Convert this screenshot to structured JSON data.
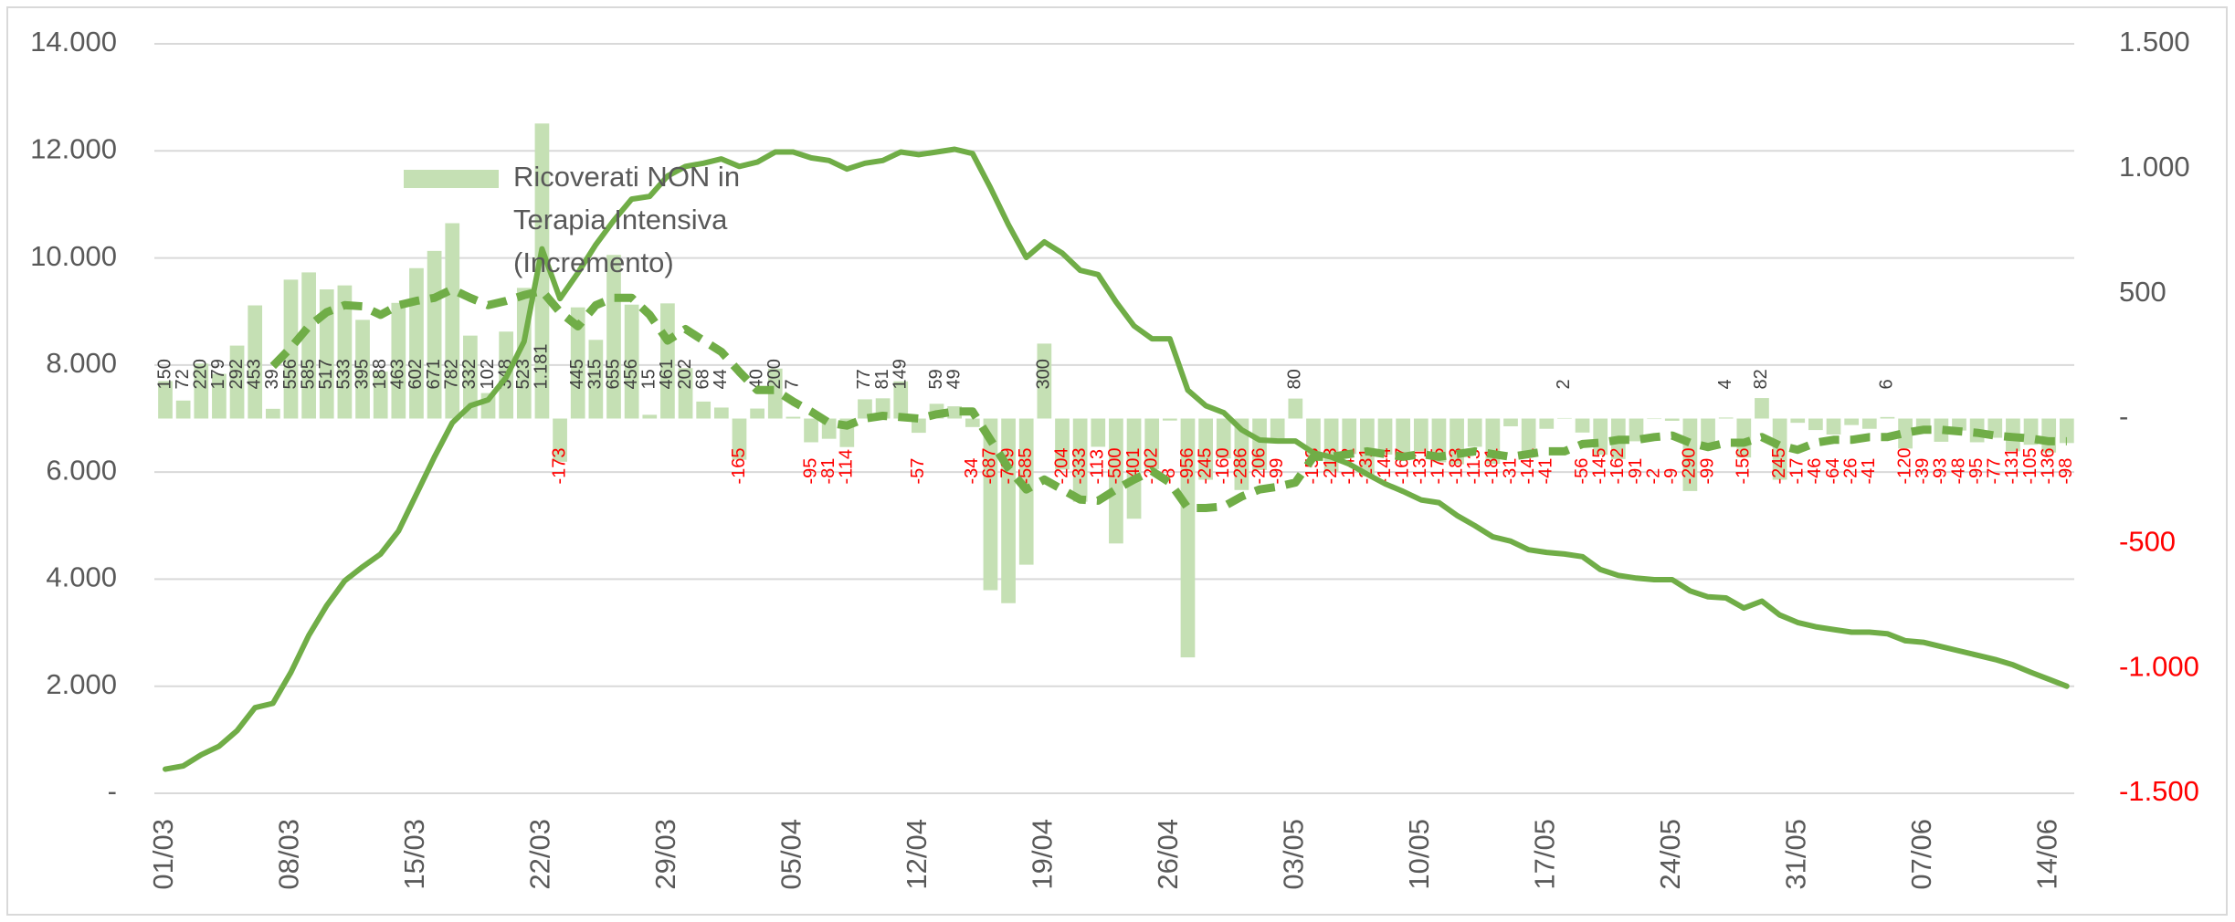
{
  "chart_data": {
    "type": "combo",
    "categories": [
      "01/03",
      null,
      null,
      null,
      null,
      null,
      null,
      "08/03",
      null,
      null,
      null,
      null,
      null,
      null,
      "15/03",
      null,
      null,
      null,
      null,
      null,
      null,
      "22/03",
      null,
      null,
      null,
      null,
      null,
      null,
      "29/03",
      null,
      null,
      null,
      null,
      null,
      null,
      "05/04",
      null,
      null,
      null,
      null,
      null,
      null,
      "12/04",
      null,
      null,
      null,
      null,
      null,
      null,
      "19/04",
      null,
      null,
      null,
      null,
      null,
      null,
      "26/04",
      null,
      null,
      null,
      null,
      null,
      null,
      "03/05",
      null,
      null,
      null,
      null,
      null,
      null,
      "10/05",
      null,
      null,
      null,
      null,
      null,
      null,
      "17/05",
      null,
      null,
      null,
      null,
      null,
      null,
      "24/05",
      null,
      null,
      null,
      null,
      null,
      null,
      "31/05",
      null,
      null,
      null,
      null,
      null,
      null,
      "07/06",
      null,
      null,
      null,
      null,
      null,
      null,
      "14/06",
      null
    ],
    "series": [
      {
        "name": "Ricoverati NON in Terapia Intensiva (Incremento)",
        "type": "bar",
        "axis": "y2",
        "color": "#c5e0b4",
        "values": [
          150,
          72,
          220,
          179,
          292,
          453,
          39,
          556,
          585,
          517,
          533,
          395,
          188,
          463,
          602,
          671,
          782,
          332,
          102,
          348,
          523,
          1181,
          -173,
          445,
          315,
          655,
          456,
          15,
          461,
          202,
          68,
          44,
          -165,
          40,
          200,
          7,
          -95,
          -81,
          -114,
          77,
          81,
          149,
          -57,
          59,
          49,
          -34,
          -687,
          -739,
          -585,
          300,
          -204,
          -333,
          -113,
          -500,
          -401,
          -202,
          -8,
          -956,
          -245,
          -160,
          -286,
          -206,
          -99,
          80,
          -153,
          -213,
          -142,
          -231,
          -144,
          -167,
          -131,
          -175,
          -183,
          -113,
          -181,
          -31,
          -141,
          -41,
          2,
          -56,
          -145,
          -162,
          -91,
          -2,
          -9,
          -290,
          -99,
          4,
          -156,
          82,
          -245,
          -17,
          -46,
          -64,
          -26,
          -41,
          6,
          -120,
          -39,
          -93,
          -48,
          -95,
          -77,
          -131,
          -105,
          -136,
          -98
        ],
        "value_labels": [
          "150",
          "72",
          "220",
          "179",
          "292",
          "453",
          "39",
          "556",
          "585",
          "517",
          "533",
          "395",
          "188",
          "463",
          "602",
          "671",
          "782",
          "332",
          "102",
          "348",
          "523",
          "1.181",
          "-173",
          "445",
          "315",
          "655",
          "456",
          "15",
          "461",
          "202",
          "68",
          "44",
          "-165",
          "40",
          "200",
          "7",
          "-95",
          "-81",
          "-114",
          "77",
          "81",
          "149",
          "-57",
          "59",
          "49",
          "-34",
          "-687",
          "-739",
          "-585",
          "300",
          "-204",
          "-333",
          "-113",
          "-500",
          "-401",
          "-202",
          "-8",
          "-956",
          "-245",
          "-160",
          "-286",
          "-206",
          "-99",
          "80",
          "-153",
          "-213",
          "-142",
          "-231",
          "-144",
          "-167",
          "-131",
          "-175",
          "-183",
          "-113",
          "-181",
          "-31",
          "-141",
          "-41",
          "2",
          "-56",
          "-145",
          "-162",
          "-91",
          "-2",
          "-9",
          "-290",
          "-99",
          "4",
          "-156",
          "82",
          "-245",
          "-17",
          "-46",
          "-64",
          "-26",
          "-41",
          "6",
          "-120",
          "-39",
          "-93",
          "-48",
          "-95",
          "-77",
          "-131",
          "-105",
          "-136",
          "-98"
        ]
      },
      {
        "type": "line",
        "color": "#70ad47",
        "dashed": false,
        "values": [
          450,
          510,
          720,
          880,
          1170,
          1600,
          1680,
          2260,
          2950,
          3510,
          3970,
          4230,
          4470,
          4900,
          5590,
          6280,
          6920,
          7240,
          7350,
          7770,
          8440,
          10170,
          9240,
          9720,
          10250,
          10700,
          11100,
          11150,
          11530,
          11710,
          11770,
          11850,
          11710,
          11790,
          11980,
          11980,
          11870,
          11820,
          11660,
          11770,
          11820,
          11980,
          11930,
          11980,
          12030,
          11950,
          11310,
          10620,
          10010,
          10300,
          10090,
          9770,
          9690,
          9180,
          8730,
          8490,
          8490,
          7530,
          7240,
          7110,
          6790,
          6600,
          6580,
          6580,
          6360,
          6280,
          6150,
          5960,
          5780,
          5640,
          5480,
          5430,
          5190,
          5000,
          4790,
          4710,
          4550,
          4500,
          4470,
          4420,
          4180,
          4070,
          4020,
          3990,
          3990,
          3780,
          3670,
          3650,
          3460,
          3590,
          3330,
          3190,
          3110,
          3060,
          3010,
          3010,
          2980,
          2850,
          2820,
          2740,
          2660,
          2580,
          2500,
          2400,
          2260,
          2130,
          2000
        ]
      },
      {
        "type": "line",
        "axis": "y2",
        "color": "#70ad47",
        "dashed": true,
        "values": [
          null,
          null,
          null,
          null,
          null,
          null,
          210,
          284,
          369,
          426,
          454,
          449,
          415,
          454,
          471,
          483,
          517,
          483,
          454,
          471,
          494,
          511,
          426,
          369,
          454,
          483,
          483,
          415,
          312,
          358,
          312,
          267,
          187,
          114,
          114,
          68,
          28,
          -17,
          -28,
          0,
          11,
          6,
          0,
          17,
          28,
          28,
          -85,
          -199,
          -284,
          -244,
          -284,
          -324,
          -329,
          -284,
          -244,
          -210,
          -256,
          -358,
          -358,
          -352,
          -312,
          -284,
          -273,
          -256,
          -153,
          -153,
          -142,
          -131,
          -142,
          -153,
          -142,
          -153,
          -142,
          -131,
          -142,
          -153,
          -142,
          -131,
          -131,
          -102,
          -97,
          -85,
          -85,
          -74,
          -68,
          -97,
          -114,
          -97,
          -97,
          -74,
          -108,
          -125,
          -97,
          -85,
          -85,
          -74,
          -74,
          -57,
          -45,
          -45,
          -51,
          -57,
          -68,
          -74,
          -80,
          -91,
          -91
        ]
      }
    ],
    "ylim": [
      0,
      14000
    ],
    "yticks": [
      {
        "value": 0,
        "label": "-"
      },
      {
        "value": 2000,
        "label": "2.000"
      },
      {
        "value": 4000,
        "label": "4.000"
      },
      {
        "value": 6000,
        "label": "6.000"
      },
      {
        "value": 8000,
        "label": "8.000"
      },
      {
        "value": 10000,
        "label": "10.000"
      },
      {
        "value": 12000,
        "label": "12.000"
      },
      {
        "value": 14000,
        "label": "14.000"
      }
    ],
    "y2lim": [
      -1500,
      1500
    ],
    "y2ticks": [
      {
        "value": -1500,
        "label": "-1.500"
      },
      {
        "value": -1000,
        "label": "-1.000"
      },
      -500,
      {
        "value": 0,
        "label": "-"
      },
      500,
      {
        "value": 1000,
        "label": "1.000"
      },
      {
        "value": 1500,
        "label": "1.500"
      }
    ],
    "grid": true,
    "negative_label_color": "#ff0000",
    "legend": "top-left"
  }
}
